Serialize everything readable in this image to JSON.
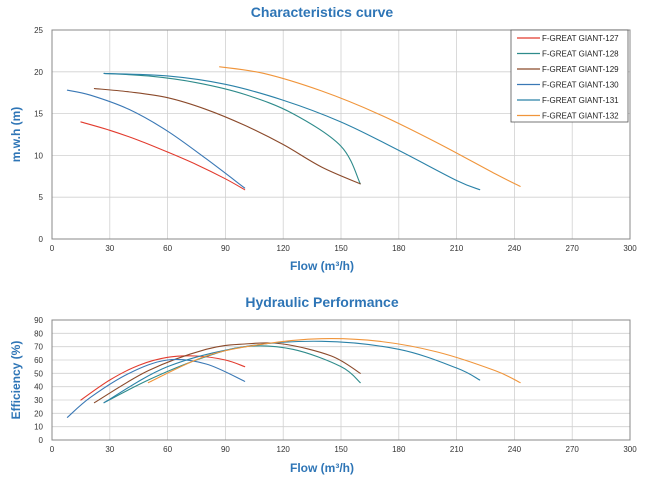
{
  "chart_data": [
    {
      "type": "line",
      "title": "Characteristics curve",
      "xlabel": "Flow (m³/h)",
      "ylabel": "m.w.h (m)",
      "xlim": [
        0,
        300
      ],
      "ylim": [
        0,
        25
      ],
      "xticks": [
        0,
        30,
        60,
        90,
        120,
        150,
        180,
        210,
        240,
        270,
        300
      ],
      "yticks": [
        0,
        5,
        10,
        15,
        20,
        25
      ],
      "legend_position": "top-right",
      "series": [
        {
          "name": "F-GREAT  GIANT-127",
          "color": "#e23b2e",
          "x": [
            15,
            30,
            45,
            60,
            75,
            90,
            100
          ],
          "y": [
            14.0,
            13.0,
            11.8,
            10.4,
            8.9,
            7.2,
            5.9
          ]
        },
        {
          "name": "F-GREAT  GIANT-128",
          "color": "#2e8b8b",
          "x": [
            27,
            50,
            75,
            100,
            125,
            150,
            160
          ],
          "y": [
            19.8,
            19.5,
            18.7,
            17.3,
            15.0,
            11.1,
            6.6
          ]
        },
        {
          "name": "F-GREAT  GIANT-129",
          "color": "#8b4a2b",
          "x": [
            22,
            40,
            60,
            80,
            100,
            120,
            140,
            160
          ],
          "y": [
            18.0,
            17.6,
            16.9,
            15.5,
            13.6,
            11.3,
            8.6,
            6.6
          ]
        },
        {
          "name": "F-GREAT  GIANT-130",
          "color": "#3a78b5",
          "x": [
            8,
            20,
            40,
            60,
            80,
            100
          ],
          "y": [
            17.8,
            17.2,
            15.5,
            12.9,
            9.6,
            6.1
          ]
        },
        {
          "name": "F-GREAT  GIANT-131",
          "color": "#2b82a8",
          "x": [
            27,
            60,
            90,
            120,
            150,
            180,
            210,
            222
          ],
          "y": [
            19.8,
            19.5,
            18.5,
            16.6,
            14.0,
            10.6,
            7.0,
            5.9
          ]
        },
        {
          "name": "F-GREAT  GIANT-132",
          "color": "#f0953b",
          "x": [
            87,
            110,
            140,
            170,
            200,
            230,
            243
          ],
          "y": [
            20.6,
            19.8,
            17.7,
            14.9,
            11.5,
            7.8,
            6.3
          ]
        }
      ]
    },
    {
      "type": "line",
      "title": "Hydraulic Performance",
      "xlabel": "Flow (m³/h)",
      "ylabel": "Efficiency (%)",
      "xlim": [
        0,
        300
      ],
      "ylim": [
        0,
        90
      ],
      "xticks": [
        0,
        30,
        60,
        90,
        120,
        150,
        180,
        210,
        240,
        270,
        300
      ],
      "yticks": [
        0,
        10,
        20,
        30,
        40,
        50,
        60,
        70,
        80,
        90
      ],
      "series": [
        {
          "name": "F-GREAT  GIANT-127",
          "color": "#e23b2e",
          "x": [
            15,
            30,
            45,
            60,
            75,
            90,
            100
          ],
          "y": [
            30,
            45,
            56,
            62,
            63,
            60,
            55
          ]
        },
        {
          "name": "F-GREAT  GIANT-128",
          "color": "#2e8b8b",
          "x": [
            27,
            50,
            75,
            100,
            125,
            150,
            160
          ],
          "y": [
            28,
            45,
            60,
            70,
            68,
            55,
            43
          ]
        },
        {
          "name": "F-GREAT  GIANT-129",
          "color": "#8b4a2b",
          "x": [
            22,
            50,
            80,
            100,
            120,
            145,
            160
          ],
          "y": [
            28,
            52,
            68,
            72,
            72,
            63,
            50
          ]
        },
        {
          "name": "F-GREAT  GIANT-130",
          "color": "#3a78b5",
          "x": [
            8,
            20,
            40,
            60,
            80,
            100
          ],
          "y": [
            17,
            32,
            50,
            60,
            57,
            44
          ]
        },
        {
          "name": "F-GREAT  GIANT-131",
          "color": "#2b82a8",
          "x": [
            27,
            60,
            100,
            140,
            180,
            210,
            222
          ],
          "y": [
            28,
            55,
            70,
            74,
            68,
            54,
            45
          ]
        },
        {
          "name": "F-GREAT  GIANT-132",
          "color": "#f0953b",
          "x": [
            50,
            80,
            110,
            140,
            170,
            200,
            230,
            243
          ],
          "y": [
            43,
            63,
            72,
            76,
            74,
            66,
            52,
            43
          ]
        }
      ]
    }
  ]
}
